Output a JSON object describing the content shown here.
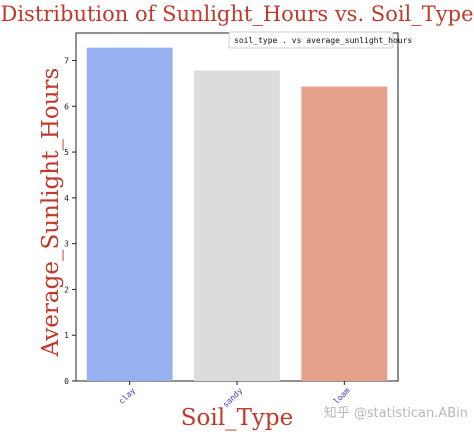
{
  "chart_data": {
    "type": "bar",
    "title": "Distribution of Sunlight_Hours vs. Soil_Type",
    "xlabel": "Soil_Type",
    "ylabel": "Average_Sunlight_Hours",
    "legend_label": "soil_type . vs average_sunlight_hours",
    "legend_position": "top-right",
    "categories": [
      "clay",
      "sandy",
      "loam"
    ],
    "values": [
      7.28,
      6.78,
      6.43
    ],
    "colors": [
      "#97b1f0",
      "#dcdcdc",
      "#e5a18a"
    ],
    "ylim": [
      0,
      7.6
    ],
    "yticks": [
      0,
      1,
      2,
      3,
      4,
      5,
      6,
      7
    ],
    "grid": false
  },
  "watermark": "知乎 @statistican.ABin"
}
